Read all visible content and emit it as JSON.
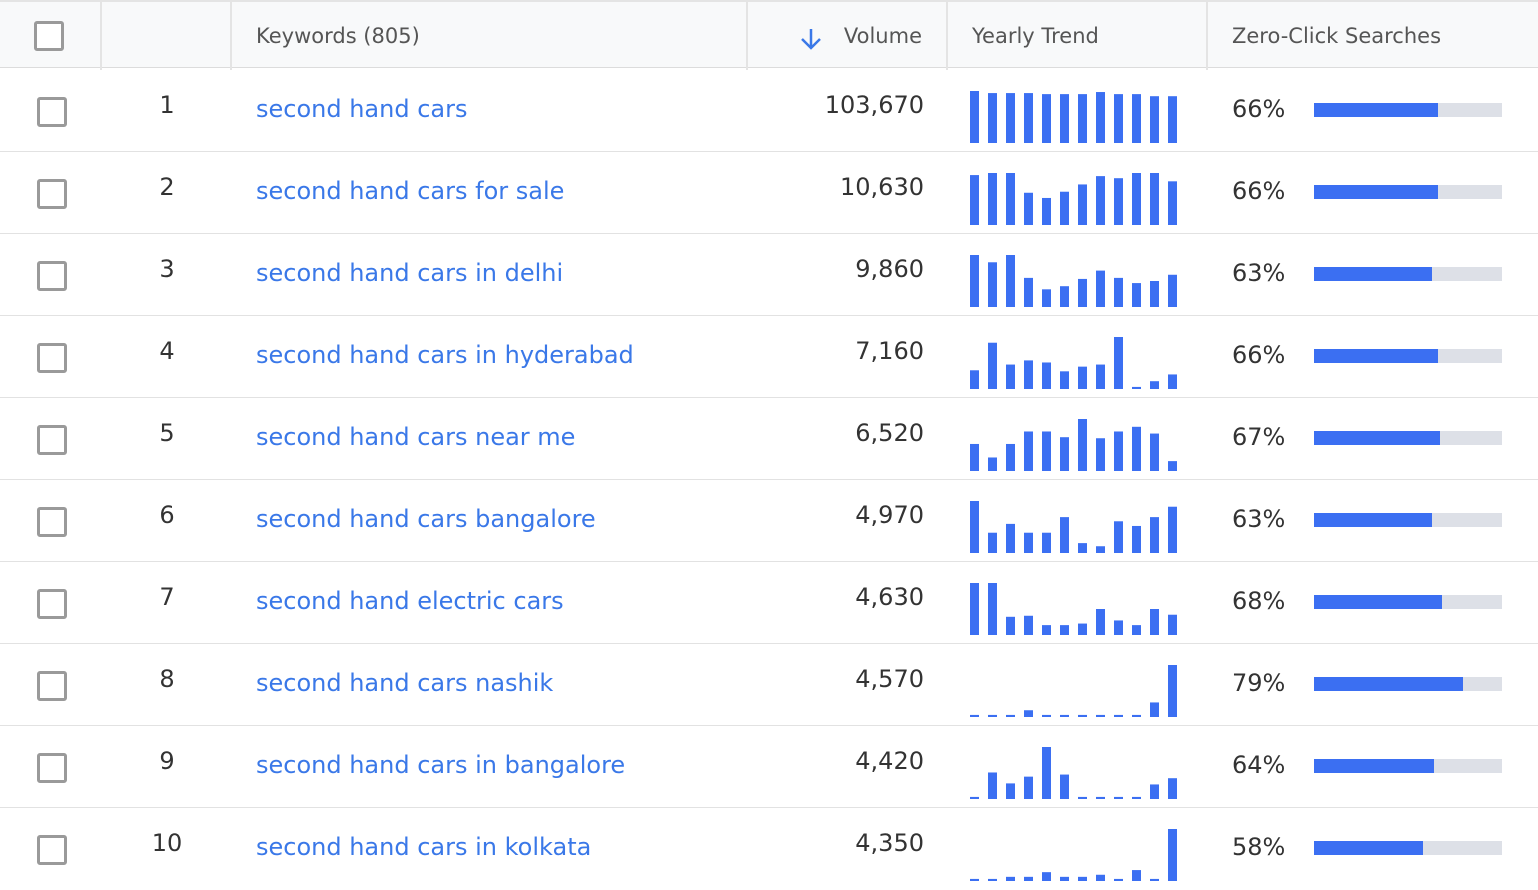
{
  "header": {
    "keywords": "Keywords (805)",
    "volume": "Volume",
    "trend": "Yearly Trend",
    "zero_click": "Zero-Click Searches"
  },
  "rows": [
    {
      "rank": "1",
      "keyword": "second hand cars",
      "volume": "103,670",
      "trend": [
        100,
        96,
        96,
        96,
        94,
        94,
        94,
        98,
        94,
        94,
        90,
        90
      ],
      "zero_click": 66,
      "zero_click_label": "66%"
    },
    {
      "rank": "2",
      "keyword": "second hand cars for sale",
      "volume": "10,630",
      "trend": [
        96,
        100,
        100,
        62,
        52,
        64,
        78,
        94,
        90,
        100,
        100,
        84
      ],
      "zero_click": 66,
      "zero_click_label": "66%"
    },
    {
      "rank": "3",
      "keyword": "second hand cars in delhi",
      "volume": "9,860",
      "trend": [
        100,
        86,
        100,
        56,
        34,
        40,
        54,
        70,
        56,
        46,
        50,
        62
      ],
      "zero_click": 63,
      "zero_click_label": "63%"
    },
    {
      "rank": "4",
      "keyword": "second hand cars in hyderabad",
      "volume": "7,160",
      "trend": [
        36,
        89,
        47,
        55,
        51,
        34,
        43,
        47,
        100,
        4,
        15,
        28
      ],
      "zero_click": 66,
      "zero_click_label": "66%"
    },
    {
      "rank": "5",
      "keyword": "second hand cars near me",
      "volume": "6,520",
      "trend": [
        52,
        26,
        52,
        76,
        76,
        65,
        100,
        63,
        76,
        85,
        72,
        19
      ],
      "zero_click": 67,
      "zero_click_label": "67%"
    },
    {
      "rank": "6",
      "keyword": "second hand cars bangalore",
      "volume": "4,970",
      "trend": [
        100,
        39,
        56,
        39,
        39,
        69,
        19,
        13,
        61,
        52,
        69,
        89
      ],
      "zero_click": 63,
      "zero_click_label": "63%"
    },
    {
      "rank": "7",
      "keyword": "second hand electric cars",
      "volume": "4,630",
      "trend": [
        100,
        100,
        35,
        37,
        19,
        19,
        22,
        50,
        28,
        19,
        50,
        39
      ],
      "zero_click": 68,
      "zero_click_label": "68%"
    },
    {
      "rank": "8",
      "keyword": "second hand cars nashik",
      "volume": "4,570",
      "trend": [
        4,
        4,
        4,
        13,
        4,
        4,
        4,
        4,
        4,
        4,
        28,
        100
      ],
      "zero_click": 79,
      "zero_click_label": "79%"
    },
    {
      "rank": "9",
      "keyword": "second hand cars in bangalore",
      "volume": "4,420",
      "trend": [
        4,
        51,
        30,
        43,
        100,
        47,
        4,
        4,
        4,
        4,
        28,
        40
      ],
      "zero_click": 64,
      "zero_click_label": "64%"
    },
    {
      "rank": "10",
      "keyword": "second hand cars in kolkata",
      "volume": "4,350",
      "trend": [
        4,
        4,
        8,
        8,
        17,
        8,
        8,
        12,
        4,
        21,
        4,
        100
      ],
      "zero_click": 58,
      "zero_click_label": "58%"
    }
  ]
}
